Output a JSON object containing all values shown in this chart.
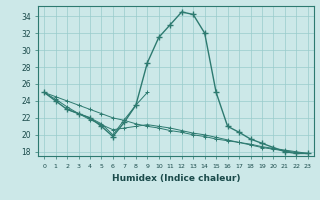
{
  "xlabel": "Humidex (Indice chaleur)",
  "background_color": "#cce8e8",
  "grid_color": "#99cccc",
  "line_color": "#2d7a70",
  "xlim": [
    -0.5,
    23.5
  ],
  "ylim": [
    17.5,
    35.2
  ],
  "yticks": [
    18,
    20,
    22,
    24,
    26,
    28,
    30,
    32,
    34
  ],
  "xticks": [
    0,
    1,
    2,
    3,
    4,
    5,
    6,
    7,
    8,
    9,
    10,
    11,
    12,
    13,
    14,
    15,
    16,
    17,
    18,
    19,
    20,
    21,
    22,
    23
  ],
  "main_x": [
    0,
    1,
    2,
    3,
    4,
    5,
    6,
    7,
    8,
    9,
    10,
    11,
    12,
    13,
    14,
    15,
    16,
    17,
    18,
    19,
    20,
    21,
    22,
    23
  ],
  "main_y": [
    25.0,
    24.0,
    23.0,
    22.5,
    22.0,
    21.0,
    19.8,
    21.5,
    23.5,
    28.5,
    31.5,
    33.0,
    34.5,
    34.2,
    32.0,
    25.0,
    21.0,
    20.3,
    19.5,
    19.0,
    18.5,
    18.0,
    17.8,
    17.8
  ],
  "diag1_x": [
    0,
    1,
    2,
    3,
    4,
    5,
    6,
    7,
    8,
    9,
    10,
    11,
    12,
    13,
    14,
    15,
    16,
    17,
    18,
    19,
    20,
    21,
    22,
    23
  ],
  "diag1_y": [
    25.0,
    24.5,
    24.0,
    23.5,
    23.0,
    22.5,
    22.0,
    21.7,
    21.3,
    21.0,
    20.8,
    20.5,
    20.3,
    20.0,
    19.8,
    19.5,
    19.3,
    19.1,
    18.9,
    18.6,
    18.4,
    18.2,
    18.0,
    17.8
  ],
  "diag2_x": [
    0,
    1,
    2,
    3,
    4,
    5,
    6,
    7,
    8,
    9,
    10,
    11,
    12,
    13,
    14,
    15,
    16,
    17,
    18,
    19,
    20,
    21,
    22,
    23
  ],
  "diag2_y": [
    25.0,
    24.2,
    23.3,
    22.5,
    21.8,
    21.2,
    20.6,
    20.8,
    21.0,
    21.2,
    21.0,
    20.8,
    20.5,
    20.2,
    20.0,
    19.7,
    19.4,
    19.1,
    18.8,
    18.5,
    18.3,
    18.1,
    17.9,
    17.8
  ],
  "zigzag_x": [
    2,
    3,
    4,
    5,
    6,
    7,
    8,
    9
  ],
  "zigzag_y": [
    23.0,
    22.5,
    22.0,
    21.3,
    20.0,
    21.8,
    23.5,
    25.0
  ]
}
